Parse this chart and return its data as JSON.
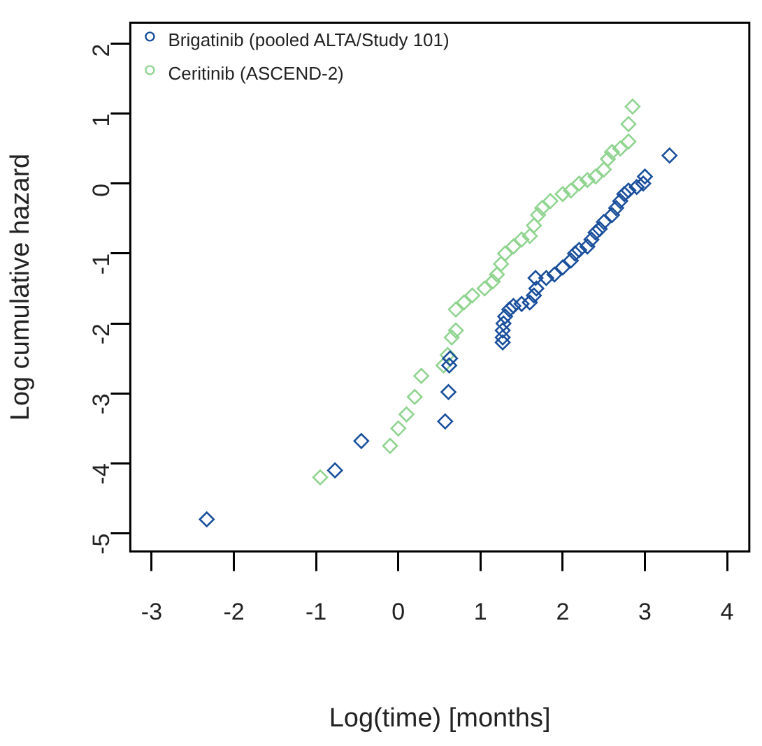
{
  "chart_data": {
    "type": "scatter",
    "xlabel": "Log(time) [months]",
    "ylabel": "Log cumulative hazard",
    "xlim": [
      -3.26,
      4.27
    ],
    "xticks": [
      -3,
      -2,
      -1,
      0,
      1,
      2,
      3,
      4
    ],
    "ylim": [
      -5.26,
      2.3
    ],
    "yticks": [
      -5,
      -4,
      -3,
      -2,
      -1,
      0,
      1,
      2
    ],
    "grid": false,
    "legend": "top left",
    "marker": "diamond",
    "series": [
      {
        "name": "Brigatinib (pooled ALTA/Study 101)",
        "color": "#1a4f9c",
        "x": [
          -2.33,
          -0.77,
          -0.45,
          0.57,
          0.61,
          0.62,
          0.63,
          1.27,
          1.27,
          1.27,
          1.28,
          1.3,
          1.35,
          1.4,
          1.5,
          1.6,
          1.65,
          1.68,
          1.67,
          1.8,
          1.9,
          2.0,
          2.1,
          2.15,
          2.2,
          2.3,
          2.35,
          2.4,
          2.45,
          2.5,
          2.6,
          2.65,
          2.7,
          2.75,
          2.8,
          2.9,
          2.98,
          3.0,
          3.3
        ],
        "values": [
          -4.8,
          -4.1,
          -3.68,
          -3.4,
          -2.98,
          -2.6,
          -2.5,
          -2.27,
          -2.2,
          -2.1,
          -2.0,
          -1.9,
          -1.8,
          -1.75,
          -1.72,
          -1.7,
          -1.6,
          -1.5,
          -1.35,
          -1.35,
          -1.3,
          -1.2,
          -1.1,
          -1.0,
          -0.95,
          -0.9,
          -0.8,
          -0.7,
          -0.65,
          -0.55,
          -0.45,
          -0.35,
          -0.25,
          -0.15,
          -0.1,
          -0.05,
          0.0,
          0.1,
          0.4
        ]
      },
      {
        "name": "Ceritinib (ASCEND-2)",
        "color": "#90d490",
        "x": [
          -0.95,
          -0.1,
          0.0,
          0.1,
          0.2,
          0.28,
          0.55,
          0.6,
          0.65,
          0.7,
          0.7,
          0.8,
          0.9,
          1.05,
          1.15,
          1.2,
          1.25,
          1.3,
          1.4,
          1.5,
          1.6,
          1.65,
          1.7,
          1.75,
          1.85,
          2.0,
          2.1,
          2.2,
          2.3,
          2.4,
          2.5,
          2.55,
          2.6,
          2.7,
          2.8,
          2.8,
          2.85
        ],
        "values": [
          -4.2,
          -3.75,
          -3.5,
          -3.3,
          -3.05,
          -2.75,
          -2.6,
          -2.45,
          -2.2,
          -2.1,
          -1.8,
          -1.7,
          -1.6,
          -1.5,
          -1.4,
          -1.3,
          -1.15,
          -1.0,
          -0.9,
          -0.8,
          -0.75,
          -0.6,
          -0.45,
          -0.35,
          -0.25,
          -0.15,
          -0.1,
          0.0,
          0.05,
          0.1,
          0.2,
          0.35,
          0.45,
          0.5,
          0.6,
          0.85,
          1.1
        ]
      }
    ]
  }
}
